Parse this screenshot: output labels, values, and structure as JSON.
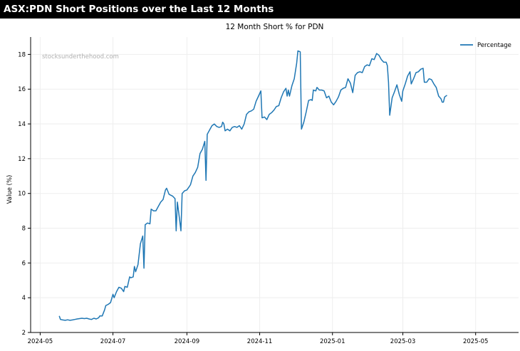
{
  "header": {
    "title": "ASX:PDN Short Positions over the Last 12 Months"
  },
  "watermark": "stocksunderthehood.com",
  "colors": {
    "line": "#1f77b4",
    "grid": "#eeeeee",
    "axis": "#000000",
    "header_bg": "#000000"
  },
  "chart_data": {
    "type": "line",
    "title": "12 Month Short % for PDN",
    "xlabel": "",
    "ylabel": "Value (%)",
    "ylim": [
      2,
      19
    ],
    "xlim": [
      "2024-04-23",
      "2025-06-06"
    ],
    "yticks": [
      2,
      4,
      6,
      8,
      10,
      12,
      14,
      16,
      18
    ],
    "xticks": [
      "2024-05",
      "2024-07",
      "2024-09",
      "2024-11",
      "2025-01",
      "2025-03",
      "2025-05"
    ],
    "grid": true,
    "legend_position": "top-right",
    "series": [
      {
        "name": "Percentage",
        "points": [
          [
            "2024-05-17",
            2.95
          ],
          [
            "2024-05-18",
            2.75
          ],
          [
            "2024-05-20",
            2.72
          ],
          [
            "2024-05-22",
            2.7
          ],
          [
            "2024-05-24",
            2.73
          ],
          [
            "2024-05-26",
            2.7
          ],
          [
            "2024-05-28",
            2.72
          ],
          [
            "2024-05-30",
            2.75
          ],
          [
            "2024-06-01",
            2.78
          ],
          [
            "2024-06-03",
            2.8
          ],
          [
            "2024-06-05",
            2.82
          ],
          [
            "2024-06-07",
            2.8
          ],
          [
            "2024-06-09",
            2.82
          ],
          [
            "2024-06-11",
            2.78
          ],
          [
            "2024-06-13",
            2.75
          ],
          [
            "2024-06-15",
            2.82
          ],
          [
            "2024-06-17",
            2.78
          ],
          [
            "2024-06-19",
            2.85
          ],
          [
            "2024-06-20",
            2.95
          ],
          [
            "2024-06-22",
            2.95
          ],
          [
            "2024-06-24",
            3.3
          ],
          [
            "2024-06-25",
            3.55
          ],
          [
            "2024-06-27",
            3.62
          ],
          [
            "2024-06-29",
            3.72
          ],
          [
            "2024-07-01",
            4.2
          ],
          [
            "2024-07-02",
            4.0
          ],
          [
            "2024-07-04",
            4.35
          ],
          [
            "2024-07-06",
            4.6
          ],
          [
            "2024-07-08",
            4.55
          ],
          [
            "2024-07-10",
            4.35
          ],
          [
            "2024-07-11",
            4.65
          ],
          [
            "2024-07-13",
            4.6
          ],
          [
            "2024-07-15",
            5.2
          ],
          [
            "2024-07-16",
            5.15
          ],
          [
            "2024-07-18",
            5.2
          ],
          [
            "2024-07-19",
            5.8
          ],
          [
            "2024-07-20",
            5.5
          ],
          [
            "2024-07-22",
            5.9
          ],
          [
            "2024-07-24",
            7.1
          ],
          [
            "2024-07-26",
            7.55
          ],
          [
            "2024-07-27",
            5.7
          ],
          [
            "2024-07-28",
            8.2
          ],
          [
            "2024-07-30",
            8.3
          ],
          [
            "2024-08-01",
            8.25
          ],
          [
            "2024-08-02",
            9.1
          ],
          [
            "2024-08-04",
            9.0
          ],
          [
            "2024-08-06",
            9.0
          ],
          [
            "2024-08-08",
            9.25
          ],
          [
            "2024-08-10",
            9.5
          ],
          [
            "2024-08-12",
            9.65
          ],
          [
            "2024-08-14",
            10.2
          ],
          [
            "2024-08-15",
            10.3
          ],
          [
            "2024-08-17",
            9.95
          ],
          [
            "2024-08-20",
            9.85
          ],
          [
            "2024-08-22",
            9.7
          ],
          [
            "2024-08-23",
            7.85
          ],
          [
            "2024-08-24",
            9.5
          ],
          [
            "2024-08-26",
            8.4
          ],
          [
            "2024-08-27",
            7.85
          ],
          [
            "2024-08-28",
            10.0
          ],
          [
            "2024-08-30",
            10.15
          ],
          [
            "2024-09-01",
            10.2
          ],
          [
            "2024-09-03",
            10.4
          ],
          [
            "2024-09-04",
            10.5
          ],
          [
            "2024-09-06",
            11.0
          ],
          [
            "2024-09-08",
            11.2
          ],
          [
            "2024-09-10",
            11.5
          ],
          [
            "2024-09-12",
            12.3
          ],
          [
            "2024-09-14",
            12.55
          ],
          [
            "2024-09-16",
            13.0
          ],
          [
            "2024-09-17",
            10.75
          ],
          [
            "2024-09-18",
            13.4
          ],
          [
            "2024-09-20",
            13.65
          ],
          [
            "2024-09-22",
            13.9
          ],
          [
            "2024-09-24",
            14.0
          ],
          [
            "2024-09-26",
            13.85
          ],
          [
            "2024-09-28",
            13.8
          ],
          [
            "2024-09-30",
            13.85
          ],
          [
            "2024-10-01",
            14.1
          ],
          [
            "2024-10-02",
            14.0
          ],
          [
            "2024-10-03",
            13.6
          ],
          [
            "2024-10-05",
            13.7
          ],
          [
            "2024-10-07",
            13.6
          ],
          [
            "2024-10-09",
            13.8
          ],
          [
            "2024-10-11",
            13.85
          ],
          [
            "2024-10-13",
            13.8
          ],
          [
            "2024-10-15",
            13.9
          ],
          [
            "2024-10-17",
            13.7
          ],
          [
            "2024-10-19",
            14.0
          ],
          [
            "2024-10-21",
            14.55
          ],
          [
            "2024-10-23",
            14.7
          ],
          [
            "2024-10-25",
            14.75
          ],
          [
            "2024-10-27",
            14.85
          ],
          [
            "2024-10-29",
            15.3
          ],
          [
            "2024-10-31",
            15.6
          ],
          [
            "2024-11-02",
            15.9
          ],
          [
            "2024-11-03",
            14.35
          ],
          [
            "2024-11-05",
            14.4
          ],
          [
            "2024-11-07",
            14.25
          ],
          [
            "2024-11-09",
            14.55
          ],
          [
            "2024-11-11",
            14.65
          ],
          [
            "2024-11-13",
            14.8
          ],
          [
            "2024-11-15",
            15.0
          ],
          [
            "2024-11-17",
            15.05
          ],
          [
            "2024-11-19",
            15.5
          ],
          [
            "2024-11-21",
            15.85
          ],
          [
            "2024-11-23",
            16.05
          ],
          [
            "2024-11-24",
            15.6
          ],
          [
            "2024-11-25",
            15.95
          ],
          [
            "2024-11-26",
            15.6
          ],
          [
            "2024-11-28",
            16.2
          ],
          [
            "2024-11-30",
            16.6
          ],
          [
            "2024-12-02",
            17.5
          ],
          [
            "2024-12-03",
            18.2
          ],
          [
            "2024-12-05",
            18.15
          ],
          [
            "2024-12-06",
            13.7
          ],
          [
            "2024-12-08",
            14.1
          ],
          [
            "2024-12-10",
            14.7
          ],
          [
            "2024-12-12",
            15.35
          ],
          [
            "2024-12-14",
            15.4
          ],
          [
            "2024-12-15",
            15.35
          ],
          [
            "2024-12-16",
            15.95
          ],
          [
            "2024-12-18",
            15.9
          ],
          [
            "2024-12-19",
            16.1
          ],
          [
            "2024-12-21",
            15.95
          ],
          [
            "2024-12-23",
            15.95
          ],
          [
            "2024-12-25",
            15.9
          ],
          [
            "2024-12-27",
            15.5
          ],
          [
            "2024-12-29",
            15.6
          ],
          [
            "2024-12-31",
            15.25
          ],
          [
            "2025-01-02",
            15.1
          ],
          [
            "2025-01-04",
            15.3
          ],
          [
            "2025-01-06",
            15.55
          ],
          [
            "2025-01-08",
            15.95
          ],
          [
            "2025-01-10",
            16.05
          ],
          [
            "2025-01-12",
            16.1
          ],
          [
            "2025-01-14",
            16.6
          ],
          [
            "2025-01-16",
            16.35
          ],
          [
            "2025-01-18",
            15.8
          ],
          [
            "2025-01-20",
            16.8
          ],
          [
            "2025-01-22",
            16.95
          ],
          [
            "2025-01-24",
            17.0
          ],
          [
            "2025-01-26",
            16.95
          ],
          [
            "2025-01-28",
            17.3
          ],
          [
            "2025-01-30",
            17.4
          ],
          [
            "2025-02-01",
            17.35
          ],
          [
            "2025-02-03",
            17.75
          ],
          [
            "2025-02-05",
            17.7
          ],
          [
            "2025-02-07",
            18.05
          ],
          [
            "2025-02-09",
            17.95
          ],
          [
            "2025-02-11",
            17.7
          ],
          [
            "2025-02-13",
            17.55
          ],
          [
            "2025-02-15",
            17.55
          ],
          [
            "2025-02-16",
            17.35
          ],
          [
            "2025-02-17",
            16.4
          ],
          [
            "2025-02-18",
            14.5
          ],
          [
            "2025-02-20",
            15.5
          ],
          [
            "2025-02-22",
            15.85
          ],
          [
            "2025-02-24",
            16.25
          ],
          [
            "2025-02-26",
            15.7
          ],
          [
            "2025-02-28",
            15.3
          ],
          [
            "2025-03-01",
            15.9
          ],
          [
            "2025-03-03",
            16.3
          ],
          [
            "2025-03-05",
            16.75
          ],
          [
            "2025-03-07",
            17.0
          ],
          [
            "2025-03-08",
            16.3
          ],
          [
            "2025-03-10",
            16.6
          ],
          [
            "2025-03-12",
            16.95
          ],
          [
            "2025-03-14",
            17.0
          ],
          [
            "2025-03-16",
            17.15
          ],
          [
            "2025-03-18",
            17.2
          ],
          [
            "2025-03-19",
            16.4
          ],
          [
            "2025-03-21",
            16.4
          ],
          [
            "2025-03-23",
            16.6
          ],
          [
            "2025-03-25",
            16.55
          ],
          [
            "2025-03-27",
            16.3
          ],
          [
            "2025-03-29",
            16.1
          ],
          [
            "2025-03-31",
            15.6
          ],
          [
            "2025-04-02",
            15.45
          ],
          [
            "2025-04-03",
            15.25
          ],
          [
            "2025-04-04",
            15.25
          ],
          [
            "2025-04-05",
            15.55
          ],
          [
            "2025-04-07",
            15.65
          ]
        ]
      }
    ]
  }
}
